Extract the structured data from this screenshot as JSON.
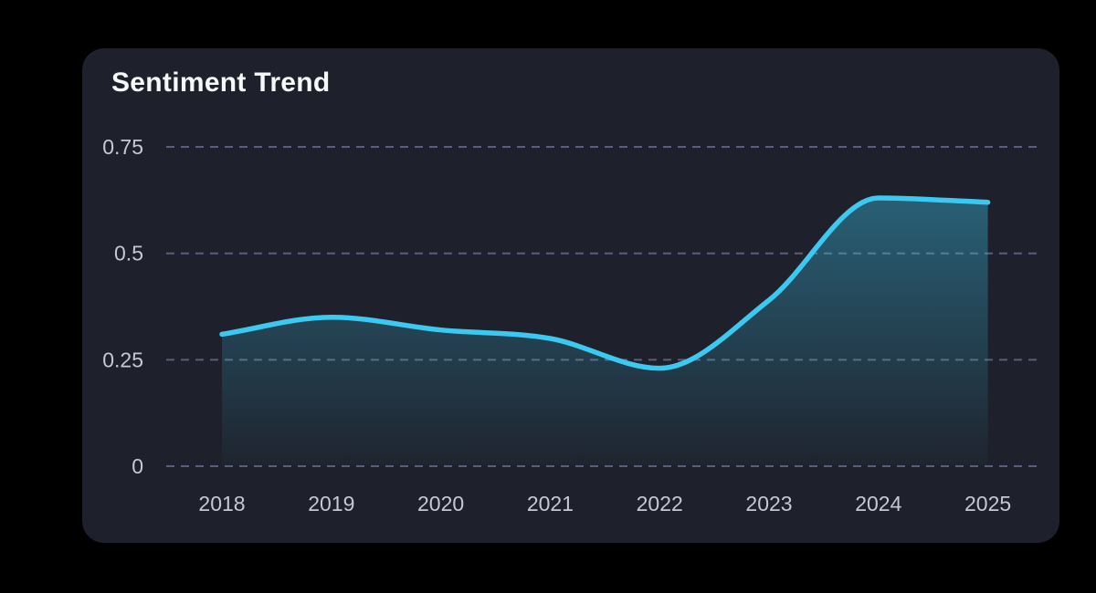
{
  "page": {
    "background_color": "#000000"
  },
  "card": {
    "title": "Sentiment Trend",
    "background_color": "#1e212b",
    "title_color": "#f7f8fa"
  },
  "chart_data": {
    "type": "area",
    "title": "Sentiment Trend",
    "categories": [
      "2018",
      "2019",
      "2020",
      "2021",
      "2022",
      "2023",
      "2024",
      "2025"
    ],
    "series": [
      {
        "name": "Sentiment",
        "values": [
          0.31,
          0.35,
          0.32,
          0.3,
          0.23,
          0.39,
          0.63,
          0.62
        ]
      }
    ],
    "y_ticks": [
      0.75,
      0.5,
      0.25,
      0
    ],
    "y_tick_labels": [
      "0.75",
      "0.5",
      "0.25",
      "0"
    ],
    "ylim": [
      0,
      0.85
    ],
    "grid": "horizontal-dashed",
    "legend": false,
    "interpolation": "monotone",
    "colors": {
      "line": "#3bc9f2",
      "fill_top": "rgba(59,201,242,0.38)",
      "fill_bottom": "rgba(59,201,242,0.02)",
      "gridline": "#5a5e7a",
      "tick_label": "#c5c9d4"
    }
  }
}
